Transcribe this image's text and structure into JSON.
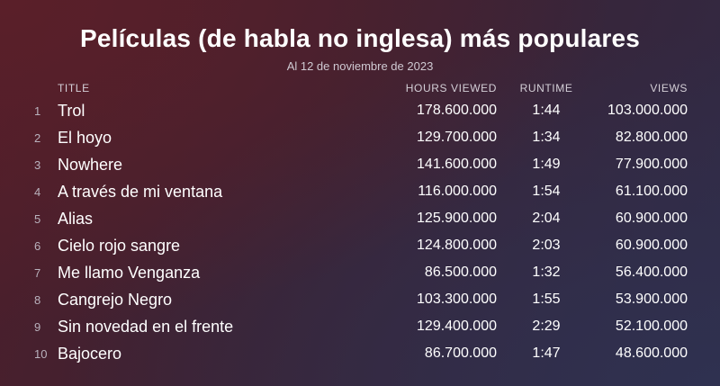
{
  "header": {
    "title": "Películas (de habla no inglesa) más populares",
    "subtitle": "Al 12 de noviembre de 2023"
  },
  "columns": {
    "title": "TITLE",
    "hours": "HOURS VIEWED",
    "runtime": "RUNTIME",
    "views": "VIEWS"
  },
  "rows": [
    {
      "rank": "1",
      "title": "Trol",
      "hours": "178.600.000",
      "runtime": "1:44",
      "views": "103.000.000"
    },
    {
      "rank": "2",
      "title": "El hoyo",
      "hours": "129.700.000",
      "runtime": "1:34",
      "views": "82.800.000"
    },
    {
      "rank": "3",
      "title": "Nowhere",
      "hours": "141.600.000",
      "runtime": "1:49",
      "views": "77.900.000"
    },
    {
      "rank": "4",
      "title": "A través de mi ventana",
      "hours": "116.000.000",
      "runtime": "1:54",
      "views": "61.100.000"
    },
    {
      "rank": "5",
      "title": "Alias",
      "hours": "125.900.000",
      "runtime": "2:04",
      "views": "60.900.000"
    },
    {
      "rank": "6",
      "title": "Cielo rojo sangre",
      "hours": "124.800.000",
      "runtime": "2:03",
      "views": "60.900.000"
    },
    {
      "rank": "7",
      "title": "Me llamo Venganza",
      "hours": "86.500.000",
      "runtime": "1:32",
      "views": "56.400.000"
    },
    {
      "rank": "8",
      "title": "Cangrejo Negro",
      "hours": "103.300.000",
      "runtime": "1:55",
      "views": "53.900.000"
    },
    {
      "rank": "9",
      "title": "Sin novedad en el frente",
      "hours": "129.400.000",
      "runtime": "2:29",
      "views": "52.100.000"
    },
    {
      "rank": "10",
      "title": "Bajocero",
      "hours": "86.700.000",
      "runtime": "1:47",
      "views": "48.600.000"
    }
  ]
}
